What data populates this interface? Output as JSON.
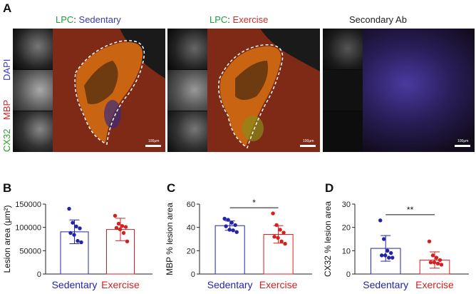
{
  "panel_letters": {
    "a": "A",
    "b": "B",
    "c": "C",
    "d": "D"
  },
  "panel_a": {
    "titles": [
      {
        "prefix": "LPC",
        "sep": ": ",
        "condition": "Sedentary"
      },
      {
        "prefix": "LPC",
        "sep": ": ",
        "condition": "Exercise"
      },
      {
        "prefix": "",
        "sep": "",
        "condition": "Secondary Ab"
      }
    ],
    "stain_labels": [
      "CX32",
      "MBP",
      "DAPI"
    ],
    "scale_labels": [
      "100μm",
      "100μm",
      "100μm"
    ],
    "colors": {
      "lpc": "#1e9e3a",
      "sedentary": "#3b3ba8",
      "exercise": "#d42a2a",
      "secondary": "#222222",
      "dapi": "#3a3ad0",
      "mbp": "#e02020",
      "cx32": "#2aa02a"
    }
  },
  "chart_data": [
    {
      "type": "bar",
      "panel": "B",
      "categories": [
        "Sedentary",
        "Exercise"
      ],
      "values": [
        90500,
        95500
      ],
      "error": [
        25500,
        24000
      ],
      "points": [
        [
          140000,
          110000,
          102000,
          98000,
          88000,
          84000,
          71000,
          68000
        ],
        [
          125000,
          108000,
          103000,
          101000,
          99000,
          96000,
          88000,
          70000
        ]
      ],
      "ylabel": "Lesion area (μm²)",
      "ylim": [
        0,
        150000
      ],
      "yticks": [
        0,
        50000,
        100000,
        150000
      ],
      "ytick_labels": [
        "0",
        "50000",
        "100000",
        "150000"
      ],
      "colors": [
        "#2424a8",
        "#d42020"
      ],
      "significance": ""
    },
    {
      "type": "bar",
      "panel": "C",
      "categories": [
        "Sedentary",
        "Exercise"
      ],
      "values": [
        41.5,
        34
      ],
      "error": [
        4,
        7.5
      ],
      "points": [
        [
          47.5,
          46.5,
          44,
          42,
          41,
          38,
          37.5,
          36
        ],
        [
          52,
          42,
          38,
          35.5,
          32,
          31,
          28,
          26
        ]
      ],
      "ylabel": "MBP % lesion area",
      "ylim": [
        0,
        60
      ],
      "yticks": [
        0,
        20,
        40,
        60
      ],
      "ytick_labels": [
        "0",
        "20",
        "40",
        "60"
      ],
      "colors": [
        "#2424a8",
        "#d42020"
      ],
      "significance": "*"
    },
    {
      "type": "bar",
      "panel": "D",
      "categories": [
        "Sedentary",
        "Exercise"
      ],
      "values": [
        11,
        6
      ],
      "error": [
        5.5,
        3.5
      ],
      "points": [
        [
          23,
          15,
          10,
          9,
          8,
          8,
          7,
          7
        ],
        [
          14,
          8,
          7,
          6,
          5,
          5,
          4.5,
          4
        ]
      ],
      "ylabel": "CX32 % lesion area",
      "ylim": [
        0,
        30
      ],
      "yticks": [
        0,
        10,
        20,
        30
      ],
      "ytick_labels": [
        "0",
        "10",
        "20",
        "30"
      ],
      "colors": [
        "#2424a8",
        "#d42020"
      ],
      "significance": "**"
    }
  ]
}
